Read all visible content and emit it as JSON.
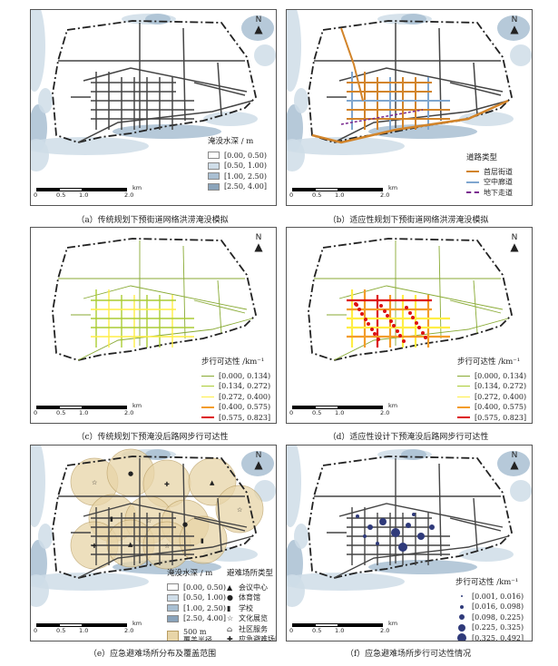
{
  "colors": {
    "flood1": "#ffffff",
    "flood2": "#cfdde8",
    "flood3": "#a9bfd2",
    "flood4": "#8aa3ba",
    "road": "#444444",
    "access1": "#88aa33",
    "access2": "#aacc33",
    "access3": "#ffee44",
    "access4": "#f39c2a",
    "access5": "#dd1111",
    "street_first": "#d2842a",
    "street_air": "#7fa6cf",
    "street_under": "#7a2a90",
    "shelter_circle": "#e8d5a8",
    "demand_dot": "#2f3a7a"
  },
  "common": {
    "north": "N",
    "scale_unit": "km",
    "scale_ticks": [
      "0",
      "0.5",
      "1.0",
      "2.0"
    ]
  },
  "panels": {
    "a": {
      "caption": "（a）传统规划下预街道网络洪涝淹没模拟",
      "legend_title": "淹没水深 / m",
      "legend": [
        "[0.00, 0.50)",
        "[0.50, 1.00)",
        "[1.00, 2.50)",
        "[2.50, 4.00]"
      ]
    },
    "b": {
      "caption": "（b）适应性规划下预街道网络洪涝淹没模拟",
      "legend_title": "道路类型",
      "legend": [
        "首层街道",
        "空中廊道",
        "地下走道"
      ]
    },
    "c": {
      "caption": "（c）传统规划下预淹没后路网步行可达性",
      "legend_title": "步行可达性 /km⁻¹",
      "legend": [
        "[0.000, 0.134)",
        "[0.134, 0.272)",
        "[0.272, 0.400)",
        "[0.400, 0.575)",
        "[0.575, 0.823]"
      ]
    },
    "d": {
      "caption": "（d）适应性设计下预淹没后路网步行可达性",
      "legend_title": "步行可达性 /km⁻¹",
      "legend": [
        "[0.000, 0.134)",
        "[0.134, 0.272)",
        "[0.272, 0.400)",
        "[0.400, 0.575)",
        "[0.575, 0.823]"
      ]
    },
    "e": {
      "caption": "（e）应急避难场所分布及覆盖范围",
      "flood_title": "淹没水深 / m",
      "flood_legend": [
        "[0.00, 0.50)",
        "[0.50, 1.00)",
        "[1.00, 2.50)",
        "[2.50, 4.00]"
      ],
      "coverage_label": "500 m\n覆盖半径",
      "shelter_title": "避难场所类型",
      "shelter_legend": [
        "会议中心",
        "体育馆",
        "学校",
        "文化展览",
        "社区服务",
        "应急避难场所"
      ]
    },
    "f": {
      "caption": "（f）应急避难场所步行可达性情况",
      "legend_title": "步行可达性 /km⁻¹",
      "legend": [
        "[0.001, 0.016)",
        "[0.016, 0.098)",
        "[0.098, 0.225)",
        "[0.225, 0.325)",
        "[0.325, 0.492]"
      ]
    }
  }
}
